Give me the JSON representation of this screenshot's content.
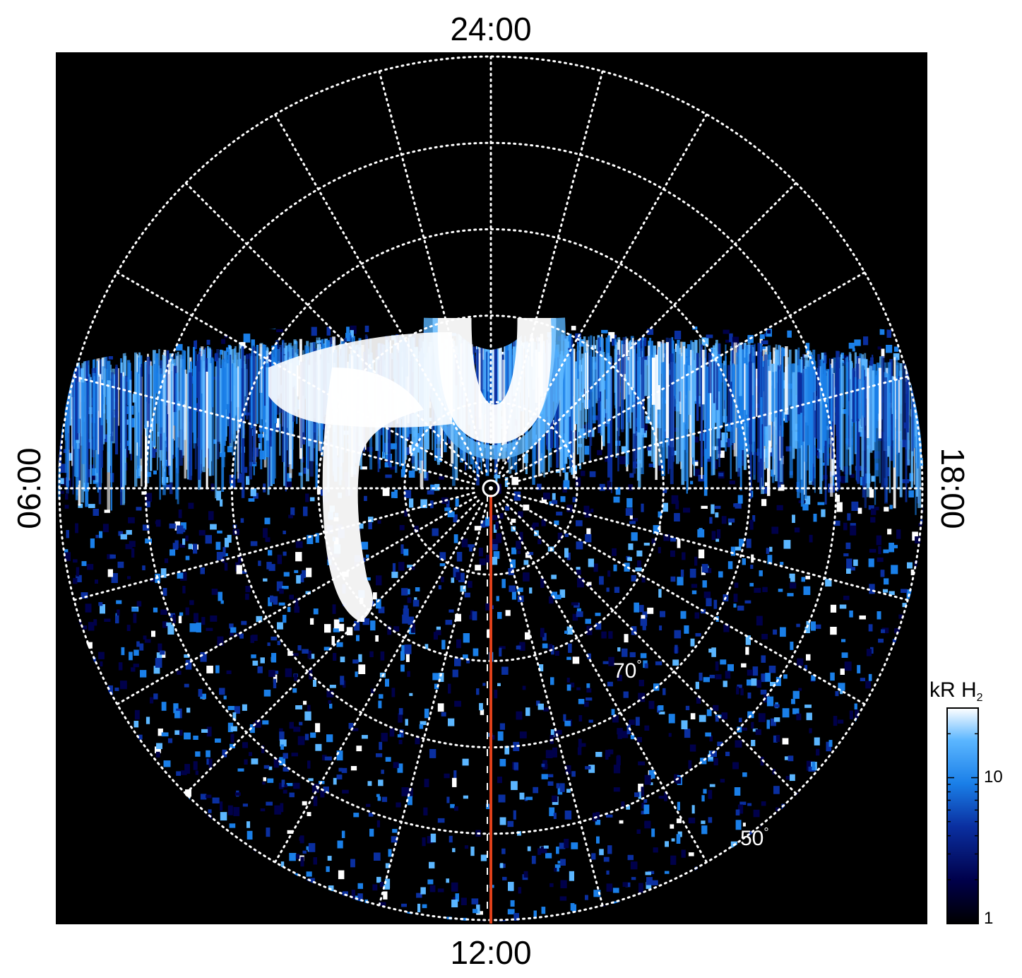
{
  "labels": {
    "top": "24:00",
    "bottom": "12:00",
    "left": "06:00",
    "right": "18:00",
    "lat_70": "70",
    "lat_50": "50",
    "degree": "°"
  },
  "colorbar": {
    "unit_main": "kR H",
    "unit_sub": "2",
    "scale": "log",
    "tick_labels": [
      "10",
      "1"
    ],
    "colors": [
      "#000000",
      "#00004a",
      "#0a2fa0",
      "#1a7fe8",
      "#5bb6ff",
      "#ffffff"
    ]
  },
  "map": {
    "background": "#000000",
    "grid_color": "#ffffff",
    "meridian_line_color": "#e0401a",
    "latitude_circles_deg": [
      50,
      60,
      70,
      80
    ],
    "meridians_count": 24
  }
}
